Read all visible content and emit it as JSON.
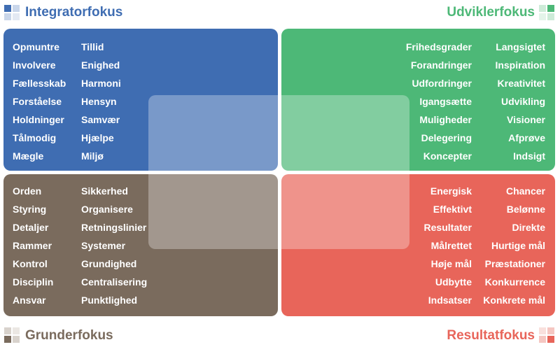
{
  "colors": {
    "integrator": "#3f6db2",
    "udvikler": "#4db877",
    "grunder": "#7a6b5d",
    "resultat": "#e8655a"
  },
  "quadrants": {
    "integrator": {
      "title": "Integratorfokus",
      "col1": [
        "Opmuntre",
        "Involvere",
        "Fællesskab",
        "Forståelse",
        "Holdninger",
        "Tålmodig",
        "Mægle"
      ],
      "col2": [
        "Tillid",
        "Enighed",
        "Harmoni",
        "Hensyn",
        "Samvær",
        "Hjælpe",
        "Miljø"
      ]
    },
    "udvikler": {
      "title": "Udviklerfokus",
      "col1": [
        "Frihedsgrader",
        "Forandringer",
        "Udfordringer",
        "Igangsætte",
        "Muligheder",
        "Delegering",
        "Koncepter"
      ],
      "col2": [
        "Langsigtet",
        "Inspiration",
        "Kreativitet",
        "Udvikling",
        "Visioner",
        "Afprøve",
        "Indsigt"
      ]
    },
    "grunder": {
      "title": "Grunderfokus",
      "col1": [
        "Orden",
        "Styring",
        "Detaljer",
        "Rammer",
        "Kontrol",
        "Disciplin",
        "Ansvar"
      ],
      "col2": [
        "Sikkerhed",
        "Organisere",
        "Retningslinier",
        "Systemer",
        "Grundighed",
        "Centralisering",
        "Punktlighed"
      ]
    },
    "resultat": {
      "title": "Resultatfokus",
      "col1": [
        "Energisk",
        "Effektivt",
        "Resultater",
        "Målrettet",
        "Høje mål",
        "Udbytte",
        "Indsatser"
      ],
      "col2": [
        "Chancer",
        "Belønne",
        "Direkte",
        "Hurtige mål",
        "Præstationer",
        "Konkurrence",
        "Konkrete mål"
      ]
    }
  }
}
